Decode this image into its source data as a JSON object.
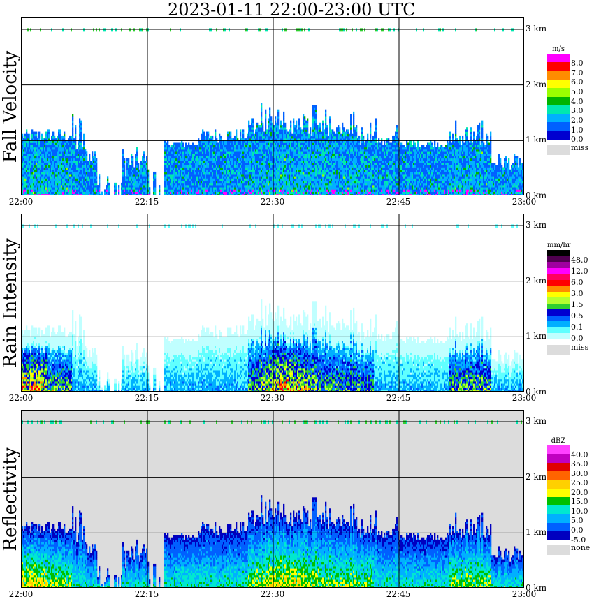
{
  "title": "2023-01-11   22:00-23:00 UTC",
  "colors": {
    "missing": "#dcdcdc",
    "grid": "#000000"
  },
  "chart_data": [
    {
      "type": "heatmap",
      "name": "Fall Velocity",
      "ylabel": "Fall Velocity",
      "x_ticks": [
        "22:00",
        "22:15",
        "22:30",
        "22:45",
        "23:00"
      ],
      "y_ticks": [
        "0 km",
        "1 km",
        "2 km",
        "3 km"
      ],
      "ylim_km": [
        0,
        3.2
      ],
      "xlim_min": [
        0,
        60
      ],
      "colorbar": {
        "unit": "m/s",
        "labels": [
          "8.0",
          "7.0",
          "6.0",
          "5.0",
          "4.0",
          "3.0",
          "2.0",
          "1.0",
          "0.0"
        ],
        "colors": [
          "#ff00ff",
          "#ff0000",
          "#ff8c00",
          "#ffff00",
          "#9aff00",
          "#00b400",
          "#00e8b0",
          "#00b0ff",
          "#0060ff",
          "#0000d0"
        ],
        "missing_label": "miss"
      },
      "background": "#ffffff",
      "intensity_scale": 0.55
    },
    {
      "type": "heatmap",
      "name": "Rain Intensity",
      "ylabel": "Rain Intensity",
      "x_ticks": [
        "22:00",
        "22:15",
        "22:30",
        "22:45",
        "23:00"
      ],
      "y_ticks": [
        "0 km",
        "1 km",
        "2 km",
        "3 km"
      ],
      "ylim_km": [
        0,
        3.2
      ],
      "xlim_min": [
        0,
        60
      ],
      "colorbar": {
        "unit": "mm/hr",
        "labels": [
          "48.0",
          "12.0",
          "6.0",
          "3.0",
          "1.5",
          "0.5",
          "0.1",
          "0.0"
        ],
        "colors": [
          "#000000",
          "#500050",
          "#a000a0",
          "#ff00ff",
          "#ff0060",
          "#ff0000",
          "#ff8c00",
          "#ffff00",
          "#b4ff30",
          "#30d030",
          "#0000d0",
          "#0060ff",
          "#00b0ff",
          "#60ffff",
          "#c0ffff"
        ],
        "missing_label": "miss"
      },
      "background": "#ffffff",
      "intensity_scale": 0.8
    },
    {
      "type": "heatmap",
      "name": "Reflectivity",
      "ylabel": "Reflectivity",
      "x_ticks": [
        "22:00",
        "22:15",
        "22:30",
        "22:45",
        "23:00"
      ],
      "y_ticks": [
        "0 km",
        "1 km",
        "2 km",
        "3 km"
      ],
      "ylim_km": [
        0,
        3.2
      ],
      "xlim_min": [
        0,
        60
      ],
      "colorbar": {
        "unit": "dBZ",
        "labels": [
          "40.0",
          "35.0",
          "30.0",
          "25.0",
          "20.0",
          "15.0",
          "10.0",
          "5.0",
          "0.0",
          "-5.0"
        ],
        "colors": [
          "#ff40ff",
          "#c000c0",
          "#e00000",
          "#ff6400",
          "#ffd000",
          "#ffff00",
          "#00c000",
          "#00e8d0",
          "#00b0ff",
          "#0060ff",
          "#0000c0"
        ],
        "missing_label": "none"
      },
      "background": "#dcdcdc",
      "intensity_scale": 1.0
    }
  ]
}
